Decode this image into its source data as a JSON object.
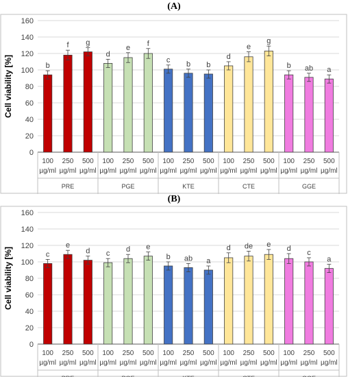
{
  "panels": [
    {
      "label": "(A)"
    },
    {
      "label": "(B)"
    }
  ],
  "chart_data": [
    {
      "type": "bar",
      "panel": "(A)",
      "ylabel": "Cell viability [%]",
      "xlabel": "",
      "ylim": [
        0,
        160
      ],
      "yticks": [
        0,
        20,
        40,
        60,
        80,
        100,
        120,
        140,
        160
      ],
      "grid": true,
      "groups": [
        "PRE",
        "PGE",
        "KTE",
        "CTE",
        "GGE"
      ],
      "concentrations": [
        "100",
        "250",
        "500"
      ],
      "unit_label": "µg/ml",
      "colors": [
        "#c00000",
        "#c6e0b4",
        "#4472c4",
        "#ffe699",
        "#f07ce0"
      ],
      "values": [
        [
          94,
          118,
          122
        ],
        [
          108,
          115,
          120
        ],
        [
          101,
          96,
          95
        ],
        [
          105,
          116,
          123
        ],
        [
          94,
          91,
          89
        ]
      ],
      "errors": [
        [
          5,
          6,
          5
        ],
        [
          5,
          6,
          6
        ],
        [
          5,
          5,
          5
        ],
        [
          5,
          6,
          6
        ],
        [
          5,
          5,
          5
        ]
      ],
      "letters": [
        [
          "b",
          "f",
          "g"
        ],
        [
          "d",
          "e",
          "f"
        ],
        [
          "c",
          "b",
          "b"
        ],
        [
          "d",
          "e",
          "g"
        ],
        [
          "b",
          "ab",
          "a"
        ]
      ]
    },
    {
      "type": "bar",
      "panel": "(B)",
      "ylabel": "Cell viability [%]",
      "xlabel": "",
      "ylim": [
        0,
        160
      ],
      "yticks": [
        0,
        20,
        40,
        60,
        80,
        100,
        120,
        140,
        160
      ],
      "grid": true,
      "groups": [
        "PRE",
        "PGE",
        "KTE",
        "CTE",
        "GGE"
      ],
      "concentrations": [
        "100",
        "250",
        "500"
      ],
      "unit_label": "µg/ml",
      "colors": [
        "#c00000",
        "#c6e0b4",
        "#4472c4",
        "#ffe699",
        "#f07ce0"
      ],
      "values": [
        [
          98,
          109,
          102
        ],
        [
          99,
          104,
          107
        ],
        [
          95,
          93,
          90
        ],
        [
          105,
          107,
          109
        ],
        [
          104,
          100,
          92
        ]
      ],
      "errors": [
        [
          5,
          5,
          5
        ],
        [
          5,
          5,
          5
        ],
        [
          5,
          5,
          5
        ],
        [
          6,
          6,
          6
        ],
        [
          6,
          5,
          5
        ]
      ],
      "letters": [
        [
          "c",
          "e",
          "d"
        ],
        [
          "c",
          "d",
          "e"
        ],
        [
          "b",
          "ab",
          "a"
        ],
        [
          "d",
          "de",
          "e"
        ],
        [
          "d",
          "c",
          "a"
        ]
      ]
    }
  ]
}
